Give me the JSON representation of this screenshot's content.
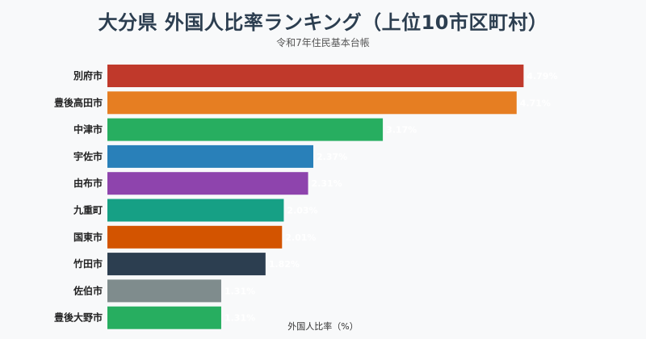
{
  "chart_data": {
    "type": "bar",
    "orientation": "horizontal",
    "title": "大分県 外国人比率ランキング（上位10市区町村）",
    "subtitle": "令和7年住民基本台帳",
    "xlabel": "外国人比率（%）",
    "ylabel": "",
    "categories": [
      "別府市",
      "豊後高田市",
      "中津市",
      "宇佐市",
      "由布市",
      "九重町",
      "国東市",
      "竹田市",
      "佐伯市",
      "豊後大野市"
    ],
    "values": [
      4.79,
      4.71,
      3.17,
      2.37,
      2.31,
      2.03,
      2.01,
      1.82,
      1.31,
      1.31
    ],
    "value_labels": [
      "4.79%",
      "4.71%",
      "3.17%",
      "2.37%",
      "2.31%",
      "2.03%",
      "2.01%",
      "1.82%",
      "1.31%",
      "1.31%"
    ],
    "colors": [
      "#c0392b",
      "#e67e22",
      "#27ae60",
      "#2980b9",
      "#8e44ad",
      "#16a085",
      "#d35400",
      "#2c3e50",
      "#7f8c8d",
      "#27ae60"
    ],
    "xlim": [
      0,
      5
    ],
    "grid": false,
    "legend": "none"
  }
}
